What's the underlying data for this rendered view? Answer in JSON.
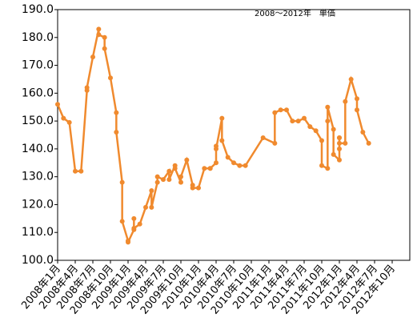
{
  "chart_data": {
    "type": "line",
    "annotation": "2008～2012年　単価",
    "x": [
      "2008-01",
      "2008-02",
      "2008-03",
      "2008-04",
      "2008-05",
      "2008-06",
      "2008-06",
      "2008-07",
      "2008-08",
      "2008-08",
      "2008-09",
      "2008-09",
      "2008-10",
      "2008-11",
      "2008-11",
      "2008-12",
      "2008-12",
      "2009-01",
      "2009-01",
      "2009-02",
      "2009-02",
      "2009-02",
      "2009-03",
      "2009-04",
      "2009-05",
      "2009-05",
      "2009-06",
      "2009-06",
      "2009-07",
      "2009-08",
      "2009-08",
      "2009-09",
      "2009-09",
      "2009-10",
      "2009-10",
      "2009-11",
      "2009-12",
      "2009-12",
      "2010-01",
      "2010-02",
      "2010-03",
      "2010-03",
      "2010-04",
      "2010-04",
      "2010-04",
      "2010-05",
      "2010-05",
      "2010-06",
      "2010-07",
      "2010-08",
      "2010-09",
      "2010-12",
      "2011-02",
      "2011-02",
      "2011-03",
      "2011-04",
      "2011-05",
      "2011-06",
      "2011-07",
      "2011-08",
      "2011-09",
      "2011-10",
      "2011-10",
      "2011-11",
      "2011-11",
      "2011-11",
      "2011-12",
      "2011-12",
      "2012-01",
      "2012-01",
      "2012-01",
      "2012-01",
      "2012-01",
      "2012-02",
      "2012-02",
      "2012-03",
      "2012-04",
      "2012-04",
      "2012-05",
      "2012-06"
    ],
    "series": [
      {
        "color": "#f08a2e",
        "values": [
          156,
          151,
          149.5,
          132,
          132,
          161,
          162,
          173,
          183,
          181,
          180,
          176,
          165.5,
          153,
          146,
          128,
          114,
          107,
          106.5,
          111,
          115,
          111.5,
          113,
          119,
          125,
          119,
          128,
          130,
          129,
          132,
          129,
          134,
          133,
          128,
          130,
          136,
          127,
          126,
          126,
          133,
          133,
          133,
          135,
          141,
          140,
          151,
          143,
          137,
          135,
          134,
          134,
          144,
          142,
          153,
          154,
          154,
          150,
          150,
          151,
          148,
          146.5,
          143,
          134,
          133,
          150,
          155,
          147,
          138,
          136,
          140,
          144,
          144,
          142,
          142,
          157,
          165,
          158,
          154,
          146,
          142
        ]
      }
    ],
    "xlim": [
      "2008-01",
      "2013-01"
    ],
    "xticks": [
      {
        "value": "2008-01",
        "label": "2008年1月"
      },
      {
        "value": "2008-04",
        "label": "2008年4月"
      },
      {
        "value": "2008-07",
        "label": "2008年7月"
      },
      {
        "value": "2008-10",
        "label": "2008年10月"
      },
      {
        "value": "2009-01",
        "label": "2009年1月"
      },
      {
        "value": "2009-04",
        "label": "2009年4月"
      },
      {
        "value": "2009-07",
        "label": "2009年7月"
      },
      {
        "value": "2009-10",
        "label": "2009年10月"
      },
      {
        "value": "2010-01",
        "label": "2010年1月"
      },
      {
        "value": "2010-04",
        "label": "2010年4月"
      },
      {
        "value": "2010-07",
        "label": "2010年7月"
      },
      {
        "value": "2010-10",
        "label": "2010年10月"
      },
      {
        "value": "2011-01",
        "label": "2011年1月"
      },
      {
        "value": "2011-04",
        "label": "2011年4月"
      },
      {
        "value": "2011-07",
        "label": "2011年7月"
      },
      {
        "value": "2011-10",
        "label": "2011年10月"
      },
      {
        "value": "2012-01",
        "label": "2012年1月"
      },
      {
        "value": "2012-04",
        "label": "2012年4月"
      },
      {
        "value": "2012-07",
        "label": "2012年7月"
      },
      {
        "value": "2012-10",
        "label": "2012年10月"
      }
    ],
    "ylim": [
      100,
      190
    ],
    "yticks": [
      {
        "value": 100,
        "label": "100.0"
      },
      {
        "value": 110,
        "label": "110.0"
      },
      {
        "value": 120,
        "label": "120.0"
      },
      {
        "value": 130,
        "label": "130.0"
      },
      {
        "value": 140,
        "label": "140.0"
      },
      {
        "value": 150,
        "label": "150.0"
      },
      {
        "value": 160,
        "label": "160.0"
      },
      {
        "value": 170,
        "label": "170.0"
      },
      {
        "value": 180,
        "label": "180.0"
      },
      {
        "value": 190,
        "label": "190.0"
      }
    ],
    "grid": false
  }
}
